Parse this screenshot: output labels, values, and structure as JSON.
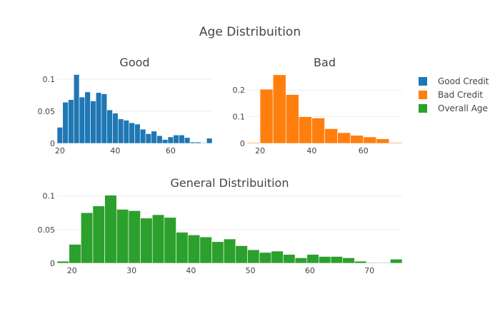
{
  "title": "Age Distribuition",
  "colors": {
    "good": "#1f77b4",
    "bad": "#ff7f0e",
    "overall": "#2ca02c"
  },
  "legend": [
    {
      "label": "Good Credit",
      "color_key": "good"
    },
    {
      "label": "Bad Credit",
      "color_key": "bad"
    },
    {
      "label": "Overall Age",
      "color_key": "overall"
    }
  ],
  "chart_data": [
    {
      "type": "bar",
      "title": "Good",
      "series_name": "Good Credit",
      "color_key": "good",
      "xlim": [
        19,
        75
      ],
      "ylim": [
        0,
        0.112
      ],
      "xticks": [
        20,
        40,
        60
      ],
      "yticks": [
        0,
        0.05,
        0.1
      ],
      "ytick_labels": [
        "0",
        "0.05",
        "0.1"
      ],
      "bin_width": 2,
      "bins": [
        {
          "x": 19,
          "y": 0.025
        },
        {
          "x": 21,
          "y": 0.064
        },
        {
          "x": 23,
          "y": 0.068
        },
        {
          "x": 25,
          "y": 0.107
        },
        {
          "x": 27,
          "y": 0.072
        },
        {
          "x": 29,
          "y": 0.08
        },
        {
          "x": 31,
          "y": 0.066
        },
        {
          "x": 33,
          "y": 0.079
        },
        {
          "x": 35,
          "y": 0.077
        },
        {
          "x": 37,
          "y": 0.052
        },
        {
          "x": 39,
          "y": 0.047
        },
        {
          "x": 41,
          "y": 0.038
        },
        {
          "x": 43,
          "y": 0.036
        },
        {
          "x": 45,
          "y": 0.032
        },
        {
          "x": 47,
          "y": 0.03
        },
        {
          "x": 49,
          "y": 0.022
        },
        {
          "x": 51,
          "y": 0.015
        },
        {
          "x": 53,
          "y": 0.019
        },
        {
          "x": 55,
          "y": 0.012
        },
        {
          "x": 57,
          "y": 0.006
        },
        {
          "x": 59,
          "y": 0.01
        },
        {
          "x": 61,
          "y": 0.013
        },
        {
          "x": 63,
          "y": 0.013
        },
        {
          "x": 65,
          "y": 0.009
        },
        {
          "x": 67,
          "y": 0.002
        },
        {
          "x": 69,
          "y": 0.002
        },
        {
          "x": 71,
          "y": 0.001
        },
        {
          "x": 73,
          "y": 0.008
        }
      ]
    },
    {
      "type": "bar",
      "title": "Bad",
      "series_name": "Bad Credit",
      "color_key": "bad",
      "xlim": [
        15,
        75
      ],
      "ylim": [
        0,
        0.27
      ],
      "xticks": [
        20,
        40,
        60
      ],
      "yticks": [
        0,
        0.1,
        0.2
      ],
      "ytick_labels": [
        "0",
        "0.1",
        "0.2"
      ],
      "bin_width": 5,
      "bins": [
        {
          "x": 15,
          "y": 0.003
        },
        {
          "x": 20,
          "y": 0.203
        },
        {
          "x": 25,
          "y": 0.257
        },
        {
          "x": 30,
          "y": 0.183
        },
        {
          "x": 35,
          "y": 0.1
        },
        {
          "x": 40,
          "y": 0.095
        },
        {
          "x": 45,
          "y": 0.055
        },
        {
          "x": 50,
          "y": 0.04
        },
        {
          "x": 55,
          "y": 0.03
        },
        {
          "x": 60,
          "y": 0.024
        },
        {
          "x": 65,
          "y": 0.017
        },
        {
          "x": 70,
          "y": 0.003
        }
      ]
    },
    {
      "type": "bar",
      "title": "General Distribuition",
      "series_name": "Overall Age",
      "color_key": "overall",
      "xlim": [
        17.5,
        75.5
      ],
      "ylim": [
        0,
        0.107
      ],
      "xticks": [
        20,
        30,
        40,
        50,
        60,
        70
      ],
      "yticks": [
        0,
        0.05,
        0.1
      ],
      "ytick_labels": [
        "0",
        "0.05",
        "0.1"
      ],
      "bin_width": 2,
      "bins": [
        {
          "x": 17.5,
          "y": 0.003
        },
        {
          "x": 19.5,
          "y": 0.028
        },
        {
          "x": 21.5,
          "y": 0.075
        },
        {
          "x": 23.5,
          "y": 0.085
        },
        {
          "x": 25.5,
          "y": 0.101
        },
        {
          "x": 27.5,
          "y": 0.08
        },
        {
          "x": 29.5,
          "y": 0.078
        },
        {
          "x": 31.5,
          "y": 0.067
        },
        {
          "x": 33.5,
          "y": 0.072
        },
        {
          "x": 35.5,
          "y": 0.068
        },
        {
          "x": 37.5,
          "y": 0.046
        },
        {
          "x": 39.5,
          "y": 0.042
        },
        {
          "x": 41.5,
          "y": 0.039
        },
        {
          "x": 43.5,
          "y": 0.032
        },
        {
          "x": 45.5,
          "y": 0.036
        },
        {
          "x": 47.5,
          "y": 0.026
        },
        {
          "x": 49.5,
          "y": 0.02
        },
        {
          "x": 51.5,
          "y": 0.016
        },
        {
          "x": 53.5,
          "y": 0.018
        },
        {
          "x": 55.5,
          "y": 0.013
        },
        {
          "x": 57.5,
          "y": 0.008
        },
        {
          "x": 59.5,
          "y": 0.013
        },
        {
          "x": 61.5,
          "y": 0.01
        },
        {
          "x": 63.5,
          "y": 0.01
        },
        {
          "x": 65.5,
          "y": 0.008
        },
        {
          "x": 67.5,
          "y": 0.003
        },
        {
          "x": 69.5,
          "y": 0.001
        },
        {
          "x": 71.5,
          "y": 0.001
        },
        {
          "x": 73.5,
          "y": 0.006
        }
      ]
    }
  ]
}
